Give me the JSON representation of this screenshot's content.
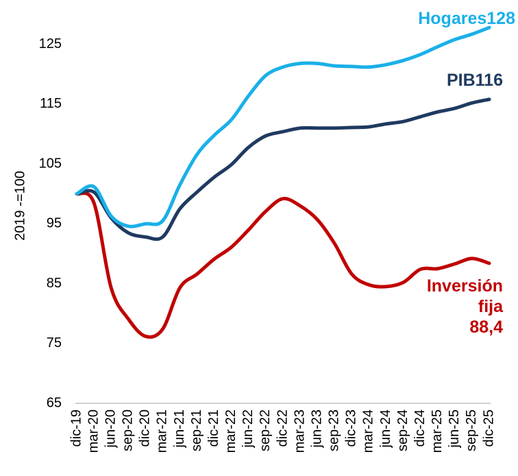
{
  "chart_data": {
    "type": "line",
    "ylabel": "2019 -=100",
    "categories": [
      "dic-19",
      "mar-20",
      "jun-20",
      "sep-20",
      "dic-20",
      "mar-21",
      "jun-21",
      "sep-21",
      "dic-21",
      "mar-22",
      "jun-22",
      "sep-22",
      "dic-22",
      "mar-23",
      "jun-23",
      "sep-23",
      "dic-23",
      "mar-24",
      "jun-24",
      "sep-24",
      "dic-24",
      "mar-25",
      "jun-25",
      "sep-25",
      "dic-25"
    ],
    "series": [
      {
        "name": "Hogares",
        "color": "#1ab0e8",
        "end_label": "128",
        "values": [
          100,
          101.2,
          96.3,
          94.6,
          95,
          95.5,
          101.5,
          106.6,
          109.8,
          112.4,
          116.4,
          119.8,
          121.2,
          121.8,
          121.8,
          121.4,
          121.3,
          121.2,
          121.6,
          122.3,
          123.3,
          124.6,
          125.8,
          126.7,
          127.8
        ]
      },
      {
        "name": "PIB",
        "color": "#1f3a60",
        "end_label": "116",
        "values": [
          100,
          100.3,
          96,
          93.5,
          92.8,
          92.8,
          97.5,
          100.3,
          102.8,
          104.9,
          107.8,
          109.7,
          110.4,
          111,
          111,
          111,
          111.1,
          111.2,
          111.7,
          112.1,
          112.9,
          113.7,
          114.3,
          115.2,
          115.8
        ]
      },
      {
        "name": "Inversión fija",
        "color": "#c00000",
        "end_label": "88,4",
        "values": [
          100,
          98.5,
          84.3,
          79.1,
          76.2,
          77.4,
          84.3,
          86.6,
          89.1,
          91.1,
          94,
          97.1,
          99.2,
          98,
          95.7,
          91.7,
          86.6,
          84.8,
          84.5,
          85.2,
          87.4,
          87.5,
          88.3,
          89.2,
          88.4
        ]
      }
    ],
    "ylim": [
      65,
      130
    ],
    "yticks": [
      65,
      75,
      85,
      95,
      105,
      115,
      125
    ],
    "grid": false
  }
}
